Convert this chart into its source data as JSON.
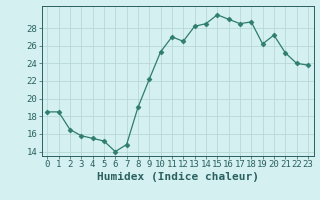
{
  "x": [
    0,
    1,
    2,
    3,
    4,
    5,
    6,
    7,
    8,
    9,
    10,
    11,
    12,
    13,
    14,
    15,
    16,
    17,
    18,
    19,
    20,
    21,
    22,
    23
  ],
  "y": [
    18.5,
    18.5,
    16.5,
    15.8,
    15.5,
    15.2,
    14.0,
    14.8,
    19.0,
    22.2,
    25.3,
    27.0,
    26.5,
    28.2,
    28.5,
    29.5,
    29.0,
    28.5,
    28.7,
    26.2,
    27.2,
    25.2,
    24.0,
    23.8
  ],
  "line_color": "#2e7d6e",
  "marker": "D",
  "marker_size": 2.5,
  "bg_color": "#d5f0f0",
  "grid_color": "#b8d8d8",
  "xlabel": "Humidex (Indice chaleur)",
  "ylim": [
    13.5,
    30.5
  ],
  "xlim": [
    -0.5,
    23.5
  ],
  "yticks": [
    14,
    16,
    18,
    20,
    22,
    24,
    26,
    28
  ],
  "xticks": [
    0,
    1,
    2,
    3,
    4,
    5,
    6,
    7,
    8,
    9,
    10,
    11,
    12,
    13,
    14,
    15,
    16,
    17,
    18,
    19,
    20,
    21,
    22,
    23
  ],
  "xtick_labels": [
    "0",
    "1",
    "2",
    "3",
    "4",
    "5",
    "6",
    "7",
    "8",
    "9",
    "10",
    "11",
    "12",
    "13",
    "14",
    "15",
    "16",
    "17",
    "18",
    "19",
    "20",
    "21",
    "22",
    "23"
  ],
  "tick_color": "#2a6060",
  "xlabel_fontsize": 8,
  "tick_fontsize": 6.5
}
